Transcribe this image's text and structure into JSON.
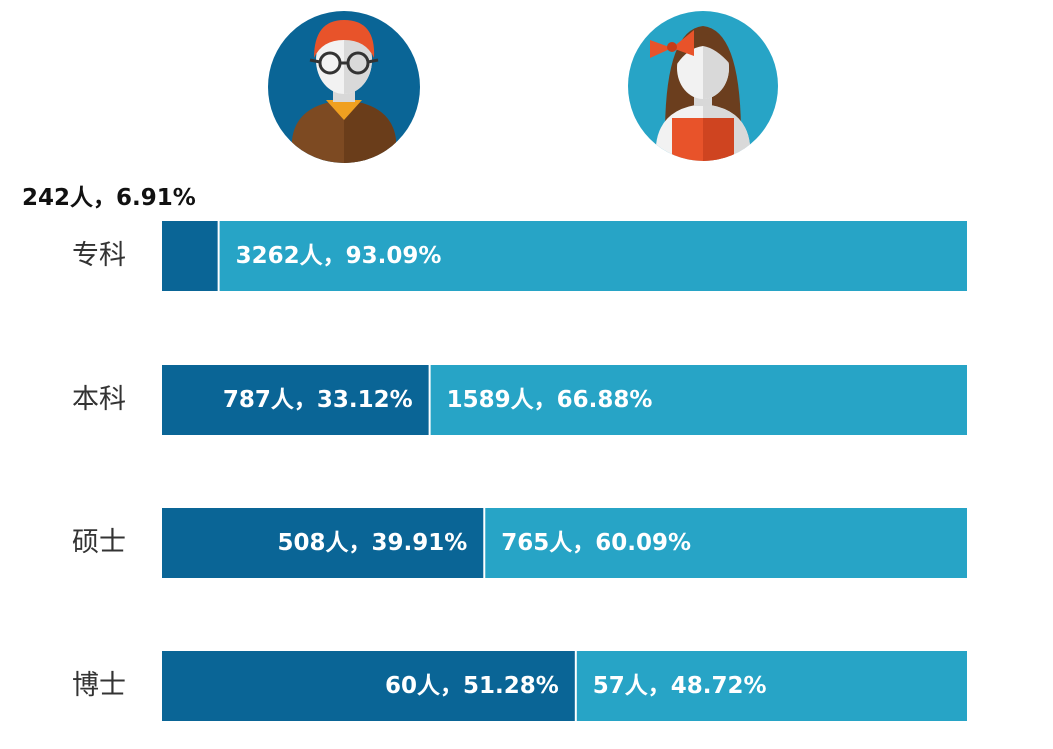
{
  "chart_data": {
    "type": "bar",
    "orientation": "horizontal",
    "stacked": true,
    "normalized": true,
    "categories": [
      "专科",
      "本科",
      "硕士",
      "博士"
    ],
    "series": [
      {
        "name": "male",
        "icon": "male-avatar-icon",
        "color": "#0a6596",
        "counts": [
          242,
          787,
          508,
          60
        ],
        "percents": [
          6.91,
          33.12,
          39.91,
          51.28
        ],
        "labels": [
          "242人，6.91%",
          "787人，33.12%",
          "508人，39.91%",
          "60人，51.28%"
        ]
      },
      {
        "name": "female",
        "icon": "female-avatar-icon",
        "color": "#27a4c6",
        "counts": [
          3262,
          1589,
          765,
          57
        ],
        "percents": [
          93.09,
          66.88,
          60.09,
          48.72
        ],
        "labels": [
          "3262人，93.09%",
          "1589人，66.88%",
          "765人，60.09%",
          "57人，48.72%"
        ]
      }
    ],
    "xlim": [
      0,
      100
    ],
    "legend": "icons-top"
  }
}
